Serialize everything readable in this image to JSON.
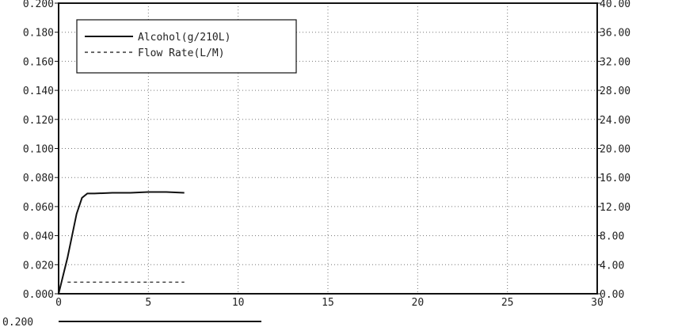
{
  "chart_data": {
    "type": "line",
    "x": [
      0,
      0.5,
      1,
      1.3,
      1.6,
      2,
      3,
      4,
      5,
      6,
      7
    ],
    "xlim": [
      0,
      30
    ],
    "x_ticks": [
      0,
      5,
      10,
      15,
      20,
      25,
      30
    ],
    "y_left": {
      "lim": [
        0,
        0.2
      ],
      "ticks": [
        "0.000",
        "0.020",
        "0.040",
        "0.060",
        "0.080",
        "0.100",
        "0.120",
        "0.140",
        "0.160",
        "0.180",
        "0.200"
      ]
    },
    "y_right": {
      "lim": [
        0,
        40
      ],
      "ticks": [
        "0.00",
        "4.00",
        "8.00",
        "12.00",
        "16.00",
        "20.00",
        "24.00",
        "28.00",
        "32.00",
        "36.00",
        "40.00"
      ]
    },
    "series": [
      {
        "name": "Alcohol(g/210L)",
        "axis": "left",
        "style": "solid",
        "x": [
          0,
          0.5,
          1,
          1.3,
          1.6,
          2,
          3,
          4,
          5,
          6,
          7
        ],
        "values": [
          0,
          0.025,
          0.055,
          0.066,
          0.069,
          0.069,
          0.0695,
          0.0695,
          0.07,
          0.07,
          0.0695
        ]
      },
      {
        "name": "Flow Rate(L/M)",
        "axis": "right",
        "style": "dashed",
        "x": [
          0.5,
          7
        ],
        "values": [
          1.6,
          1.6
        ]
      }
    ],
    "grid": true,
    "legend_position": "top-left",
    "partial_next_chart_tick": "0.200"
  }
}
